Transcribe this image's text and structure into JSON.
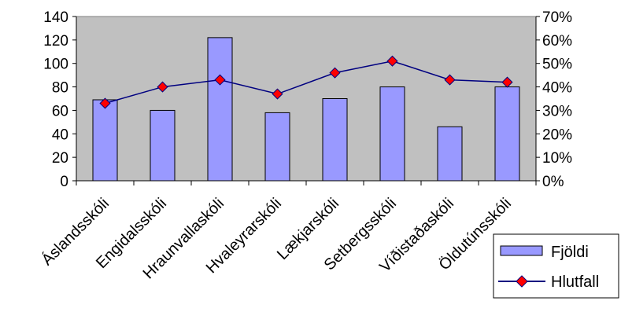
{
  "chart_data": {
    "type": "bar",
    "title": "",
    "xlabel": "",
    "ylabel": "",
    "categories": [
      "Áslandsskóli",
      "Engidalsskóli",
      "Hraunvallaskóli",
      "Hvaleyrarskóli",
      "Lækjarskóli",
      "Setbergsskóli",
      "Víðistaðaskóli",
      "Öldutúnsskóli"
    ],
    "series": [
      {
        "name": "Fjöldi",
        "type": "bar",
        "axis": "left",
        "color": "#9999ff",
        "values": [
          69,
          60,
          122,
          58,
          70,
          80,
          46,
          80
        ]
      },
      {
        "name": "Hlutfall",
        "type": "line",
        "axis": "right",
        "color": "#000080",
        "marker_color": "#ff0000",
        "values": [
          0.33,
          0.4,
          0.43,
          0.37,
          0.46,
          0.51,
          0.43,
          0.42
        ]
      }
    ],
    "ylim": [
      0,
      140
    ],
    "yticks": [
      "0",
      "20",
      "40",
      "60",
      "80",
      "100",
      "120",
      "140"
    ],
    "y2lim": [
      0,
      0.7
    ],
    "y2ticks": [
      "0%",
      "10%",
      "20%",
      "30%",
      "40%",
      "50%",
      "60%",
      "70%"
    ],
    "plot_background": "#c0c0c0",
    "grid": false,
    "legend_position": "bottom-right"
  }
}
